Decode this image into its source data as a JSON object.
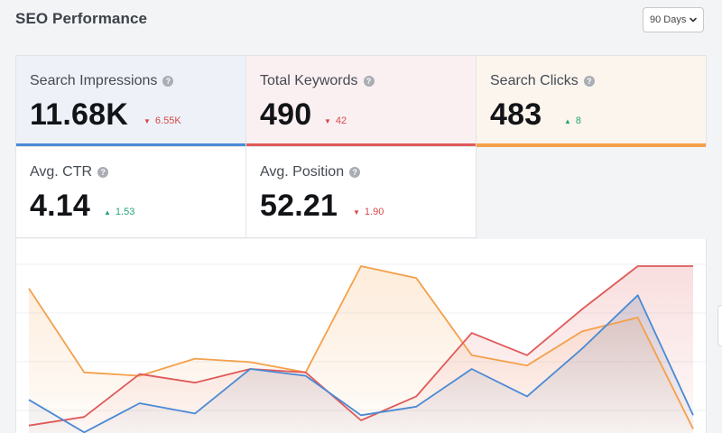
{
  "header": {
    "title": "SEO Performance",
    "range_label": "90 Days"
  },
  "cards": [
    {
      "label": "Search Impressions",
      "value": "11.68K",
      "delta": "6.55K",
      "direction": "down",
      "accent": "#4a8ad4"
    },
    {
      "label": "Total Keywords",
      "value": "490",
      "delta": "42",
      "direction": "down",
      "accent": "#e05a5a"
    },
    {
      "label": "Search Clicks",
      "value": "483",
      "delta": "8",
      "direction": "up",
      "accent": "#f4a04a"
    },
    {
      "label": "Avg. CTR",
      "value": "4.14",
      "delta": "1.53",
      "direction": "up"
    },
    {
      "label": "Avg. Position",
      "value": "52.21",
      "delta": "1.90",
      "direction": "down"
    }
  ],
  "colors": {
    "impressions": "#4a8ad4",
    "keywords": "#e05a5a",
    "clicks": "#f4a04a",
    "up": "#2aa278",
    "down": "#d44a4a"
  },
  "icons": {
    "help": "question-circle-icon",
    "dropdown": "chevron-down-icon",
    "down": "triangle-down-icon",
    "up": "triangle-up-icon"
  },
  "chart_data": {
    "type": "area",
    "x": [
      0,
      1,
      2,
      3,
      4,
      5,
      6,
      7,
      8,
      9,
      10,
      11,
      12
    ],
    "ylim": [
      0,
      1
    ],
    "grid": true,
    "series": [
      {
        "key": "clicks",
        "values": [
          0.87,
          0.38,
          0.36,
          0.46,
          0.44,
          0.38,
          1.0,
          0.93,
          0.48,
          0.42,
          0.62,
          0.7,
          0.05
        ]
      },
      {
        "key": "keywords",
        "values": [
          0.07,
          0.12,
          0.37,
          0.32,
          0.4,
          0.38,
          0.1,
          0.24,
          0.61,
          0.48,
          0.75,
          1.0,
          1.0
        ]
      },
      {
        "key": "impressions",
        "values": [
          0.22,
          0.03,
          0.2,
          0.14,
          0.4,
          0.36,
          0.13,
          0.18,
          0.4,
          0.24,
          0.52,
          0.83,
          0.13
        ]
      }
    ]
  }
}
